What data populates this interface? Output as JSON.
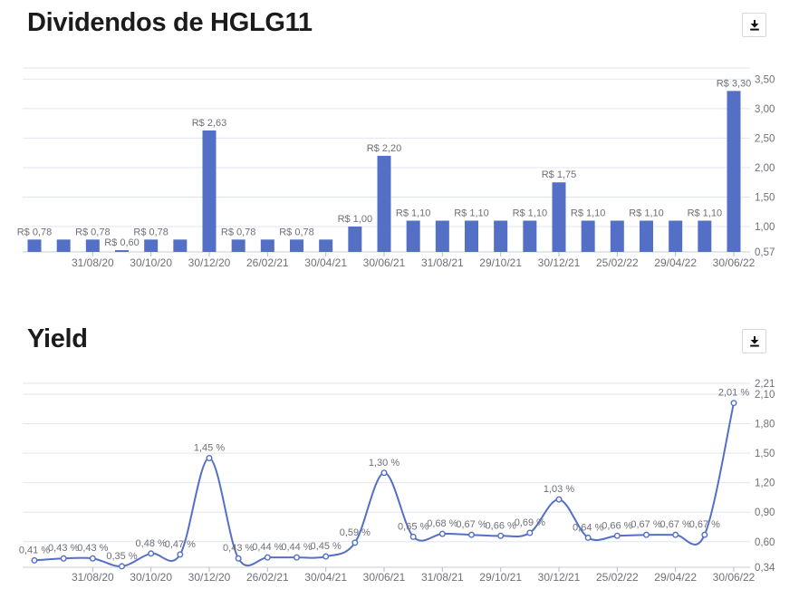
{
  "colors": {
    "series": "#5470C6",
    "grid": "#E0E6F1",
    "axis_line": "#c9ccd3",
    "tick": "#b5b9c2",
    "axis_label": "#6E7079",
    "data_label": "#6E7079",
    "title": "#1b1b1b",
    "icon": "#111111",
    "marker_fill": "#ffffff"
  },
  "toolbar": {
    "download_icon": "arrow-down-to-line"
  },
  "x_tick_labels": [
    "31/08/20",
    "30/10/20",
    "30/12/20",
    "26/02/21",
    "30/04/21",
    "30/06/21",
    "31/08/21",
    "29/10/21",
    "30/12/21",
    "25/02/22",
    "29/04/22",
    "30/06/22"
  ],
  "x_tick_point_indices": [
    2,
    4,
    6,
    8,
    10,
    12,
    14,
    16,
    18,
    20,
    22,
    24
  ],
  "chart_data": [
    {
      "type": "bar",
      "title": "Dividendos de HGLG11",
      "series_name": "Dividendos",
      "n_points": 25,
      "values": [
        0.78,
        0.78,
        0.78,
        0.6,
        0.78,
        0.78,
        2.63,
        0.78,
        0.78,
        0.78,
        0.78,
        1.0,
        2.2,
        1.1,
        1.1,
        1.1,
        1.1,
        1.1,
        1.75,
        1.1,
        1.1,
        1.1,
        1.1,
        1.1,
        3.3
      ],
      "point_labels": [
        "R$ 0,78",
        null,
        "R$ 0,78",
        "R$ 0,60",
        "R$ 0,78",
        null,
        "R$ 2,63",
        "R$ 0,78",
        null,
        "R$ 0,78",
        null,
        "R$ 1,00",
        "R$ 2,20",
        "R$ 1,10",
        null,
        "R$ 1,10",
        null,
        "R$ 1,10",
        "R$ 1,75",
        "R$ 1,10",
        null,
        "R$ 1,10",
        null,
        "R$ 1,10",
        "R$ 3,30"
      ],
      "x_tick_labels": [
        "31/08/20",
        "30/10/20",
        "30/12/20",
        "26/02/21",
        "30/04/21",
        "30/06/21",
        "31/08/21",
        "29/10/21",
        "30/12/21",
        "25/02/22",
        "29/04/22",
        "30/06/22"
      ],
      "x_tick_point_indices": [
        2,
        4,
        6,
        8,
        10,
        12,
        14,
        16,
        18,
        20,
        22,
        24
      ],
      "y_axis_labels": [
        "3,50",
        "3,00",
        "2,50",
        "2,00",
        "1,50",
        "1,00",
        "0,57"
      ],
      "y_axis_values": [
        3.5,
        3.0,
        2.5,
        2.0,
        1.5,
        1.0,
        0.57
      ],
      "ylim": [
        0.57,
        3.69
      ],
      "grid": true,
      "legend": "none",
      "axis_side": "right"
    },
    {
      "type": "line",
      "title": "Yield",
      "series_name": "Yield",
      "n_points": 25,
      "values": [
        0.41,
        0.43,
        0.43,
        0.35,
        0.48,
        0.47,
        1.45,
        0.43,
        0.44,
        0.44,
        0.45,
        0.59,
        1.3,
        0.65,
        0.68,
        0.67,
        0.66,
        0.69,
        1.03,
        0.64,
        0.66,
        0.67,
        0.67,
        0.67,
        2.01
      ],
      "point_labels": [
        "0,41 %",
        "0,43 %",
        "0,43 %",
        "0,35 %",
        "0,48 %",
        "0,47 %",
        "1,45 %",
        "0,43 %",
        "0,44 %",
        "0,44 %",
        "0,45 %",
        "0,59 %",
        "1,30 %",
        "0,65 %",
        "0,68 %",
        "0,67 %",
        "0,66 %",
        "0,69 %",
        "1,03 %",
        "0,64 %",
        "0,66 %",
        "0,67 %",
        "0,67 %",
        "0,67 %",
        "2,01 %"
      ],
      "x_tick_labels": [
        "31/08/20",
        "30/10/20",
        "30/12/20",
        "26/02/21",
        "30/04/21",
        "30/06/21",
        "31/08/21",
        "29/10/21",
        "30/12/21",
        "25/02/22",
        "29/04/22",
        "30/06/22"
      ],
      "x_tick_point_indices": [
        2,
        4,
        6,
        8,
        10,
        12,
        14,
        16,
        18,
        20,
        22,
        24
      ],
      "y_axis_labels": [
        "2,21",
        "2,10",
        "1,80",
        "1,50",
        "1,20",
        "0,90",
        "0,60",
        "0,34"
      ],
      "y_axis_values": [
        2.21,
        2.1,
        1.8,
        1.5,
        1.2,
        0.9,
        0.6,
        0.34
      ],
      "ylim": [
        0.34,
        2.21
      ],
      "smooth": true,
      "marker": "circle-open",
      "grid": true,
      "legend": "none",
      "axis_side": "right"
    }
  ]
}
